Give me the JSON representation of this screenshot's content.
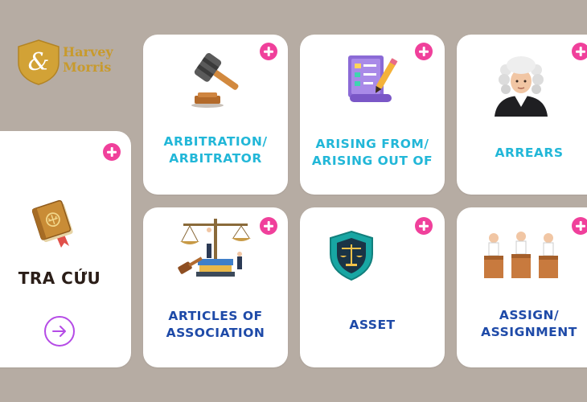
{
  "logo": {
    "monogram": "&",
    "line1": "Harvey",
    "line2": "Morris"
  },
  "side_card": {
    "title": "TRA CỨU",
    "icon": "law-book-icon",
    "action_icon": "arrow-right-circle-icon"
  },
  "cards": [
    {
      "id": "arbitration",
      "lines": [
        "ARBITRATION/",
        "ARBITRATOR"
      ],
      "icon": "gavel-icon",
      "color": "#22b7d8"
    },
    {
      "id": "arising",
      "lines": [
        "ARISING FROM/",
        "ARISING OUT OF"
      ],
      "icon": "contract-document-icon",
      "color": "#22b7d8"
    },
    {
      "id": "arrears",
      "lines": [
        "ARREARS"
      ],
      "icon": "judge-avatar-icon",
      "color": "#22b7d8"
    },
    {
      "id": "articles",
      "lines": [
        "ARTICLES OF",
        "ASSOCIATION"
      ],
      "icon": "scales-of-justice-icon",
      "color": "#1e4aa8"
    },
    {
      "id": "asset",
      "lines": [
        "ASSET"
      ],
      "icon": "justice-shield-icon",
      "color": "#1e4aa8"
    },
    {
      "id": "assign",
      "lines": [
        "ASSIGN/",
        "ASSIGNMENT"
      ],
      "icon": "courtroom-icon",
      "color": "#1e4aa8"
    }
  ],
  "colors": {
    "background": "#b6aca3",
    "card": "#ffffff",
    "plus": "#f0409b",
    "logo_gold": "#c89a2c",
    "arrow": "#b54be6"
  }
}
